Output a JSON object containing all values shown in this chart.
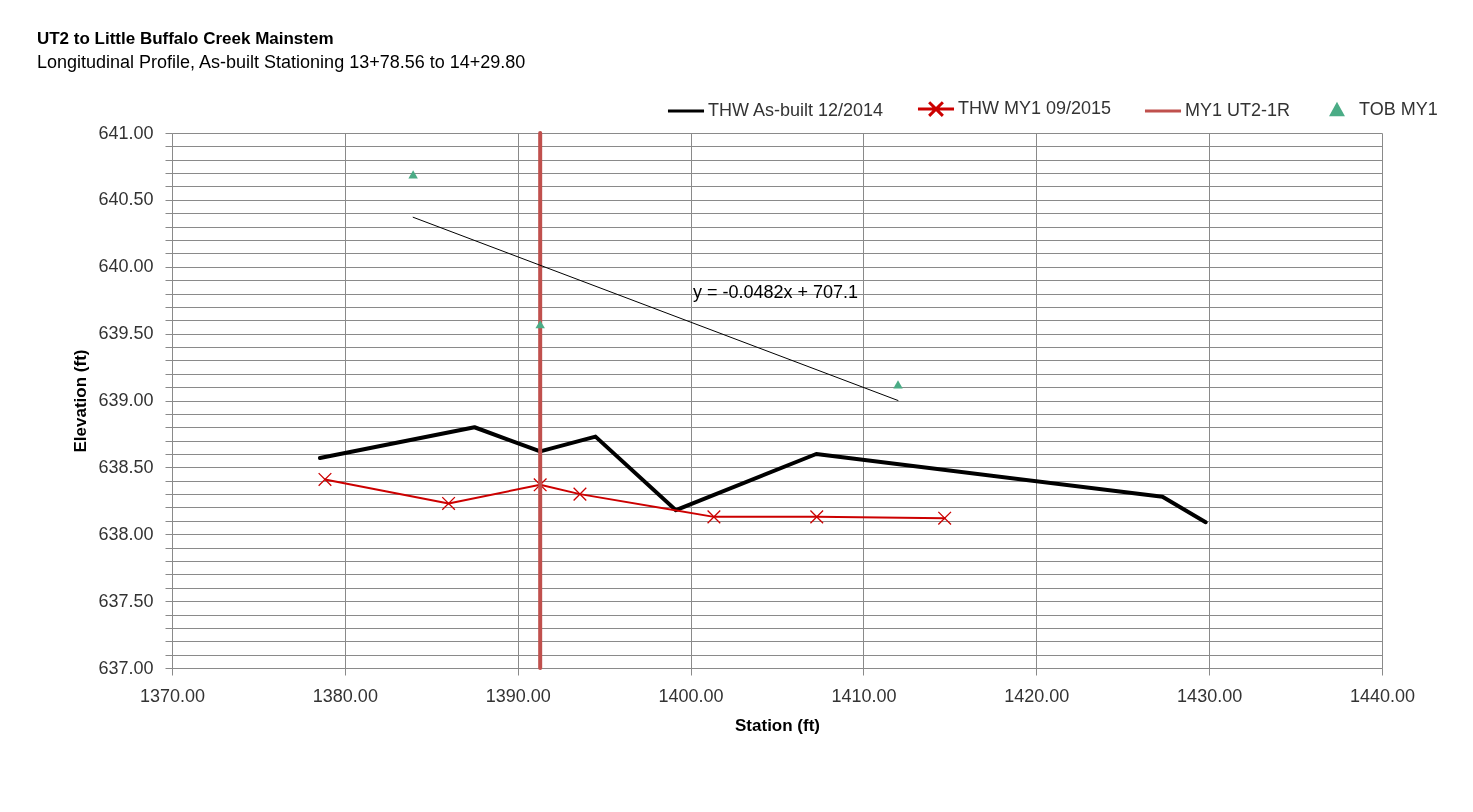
{
  "chart_data": {
    "type": "line",
    "title": "UT2 to Little Buffalo Creek Mainstem",
    "subtitle": "Longitudinal Profile, As-built Stationing 13+78.56 to 14+29.80",
    "xlabel": "Station (ft)",
    "ylabel": "Elevation (ft)",
    "series": [
      {
        "name": "THW As-built 12/2014",
        "color": "#000000",
        "x": [
          1378.56,
          1387.5,
          1391.3,
          1394.5,
          1399.15,
          1407.27,
          1427.3,
          1429.8
        ],
        "values": [
          638.57,
          638.8,
          638.62,
          638.73,
          638.18,
          638.6,
          638.28,
          638.09
        ]
      },
      {
        "name": "THW MY1 09/2015",
        "marker": "cross",
        "color": "#cc0000",
        "x": [
          1378.85,
          1386.0,
          1391.3,
          1393.6,
          1401.35,
          1407.3,
          1414.7
        ],
        "values": [
          638.41,
          638.23,
          638.37,
          638.3,
          638.13,
          638.13,
          638.12
        ]
      },
      {
        "name": "MY1 UT2-1R",
        "color": "#c0504d",
        "x": [
          1391.3,
          1391.3
        ],
        "values": [
          637,
          641
        ]
      },
      {
        "name": "TOB MY1",
        "type": "scatter",
        "marker": "triangle",
        "color": "#4bac86",
        "x": [
          1383.95,
          1391.3,
          1412.0
        ],
        "values": [
          640.69,
          639.57,
          639.12
        ]
      },
      {
        "color": "#000000",
        "x": [
          1383.95,
          1412.0
        ],
        "values": [
          640.37,
          639.0
        ]
      }
    ],
    "annotations": [
      "y = -0.0482x + 707.1"
    ],
    "xlim": [
      1370,
      1440
    ],
    "xticks": [
      {
        "value": 1370,
        "label": "1370.00"
      },
      {
        "value": 1380,
        "label": "1380.00"
      },
      {
        "value": 1390,
        "label": "1390.00"
      },
      {
        "value": 1400,
        "label": "1400.00"
      },
      {
        "value": 1410,
        "label": "1410.00"
      },
      {
        "value": 1420,
        "label": "1420.00"
      },
      {
        "value": 1430,
        "label": "1430.00"
      },
      {
        "value": 1440,
        "label": "1440.00"
      }
    ],
    "ylim": [
      637,
      641
    ],
    "yticks": [
      {
        "value": 637,
        "label": "637.00"
      },
      {
        "value": 637.1,
        "label": null
      },
      {
        "value": 637.2,
        "label": null
      },
      {
        "value": 637.3,
        "label": null
      },
      {
        "value": 637.4,
        "label": null
      },
      {
        "value": 637.5,
        "label": "637.50"
      },
      {
        "value": 637.6,
        "label": null
      },
      {
        "value": 637.7,
        "label": null
      },
      {
        "value": 637.8,
        "label": null
      },
      {
        "value": 637.9,
        "label": null
      },
      {
        "value": 638,
        "label": "638.00"
      },
      {
        "value": 638.1,
        "label": null
      },
      {
        "value": 638.2,
        "label": null
      },
      {
        "value": 638.3,
        "label": null
      },
      {
        "value": 638.4,
        "label": null
      },
      {
        "value": 638.5,
        "label": "638.50"
      },
      {
        "value": 638.6,
        "label": null
      },
      {
        "value": 638.7,
        "label": null
      },
      {
        "value": 638.8,
        "label": null
      },
      {
        "value": 638.9,
        "label": null
      },
      {
        "value": 639,
        "label": "639.00"
      },
      {
        "value": 639.1,
        "label": null
      },
      {
        "value": 639.2,
        "label": null
      },
      {
        "value": 639.3,
        "label": null
      },
      {
        "value": 639.4,
        "label": null
      },
      {
        "value": 639.5,
        "label": "639.50"
      },
      {
        "value": 639.6,
        "label": null
      },
      {
        "value": 639.7,
        "label": null
      },
      {
        "value": 639.8,
        "label": null
      },
      {
        "value": 639.9,
        "label": null
      },
      {
        "value": 640,
        "label": "640.00"
      },
      {
        "value": 640.1,
        "label": null
      },
      {
        "value": 640.2,
        "label": null
      },
      {
        "value": 640.3,
        "label": null
      },
      {
        "value": 640.4,
        "label": null
      },
      {
        "value": 640.5,
        "label": "640.50"
      },
      {
        "value": 640.6,
        "label": null
      },
      {
        "value": 640.7,
        "label": null
      },
      {
        "value": 640.8,
        "label": null
      },
      {
        "value": 640.9,
        "label": null
      },
      {
        "value": 641,
        "label": "641.00"
      }
    ],
    "grid": true,
    "legend": "top right"
  }
}
